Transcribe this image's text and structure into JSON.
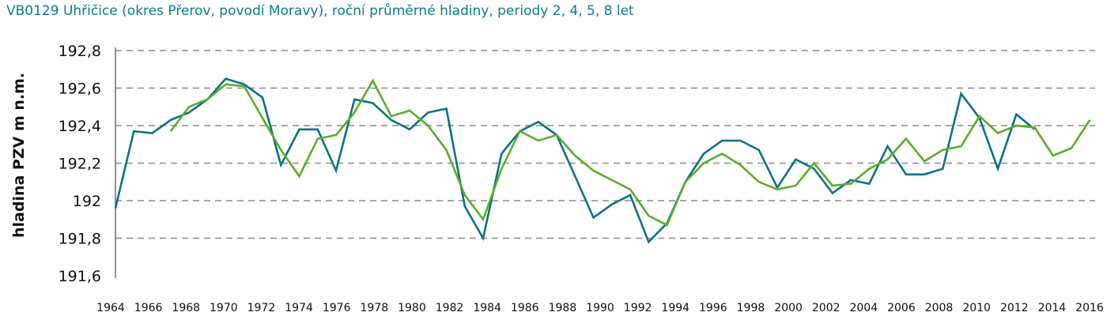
{
  "chart_data": {
    "type": "line",
    "title": "VB0129 Uhřičice (okres Přerov, povodí Moravy), roční průměrné hladiny, periody 2, 4, 5, 8 let",
    "xlabel": "",
    "ylabel": "hladina PZV m n.m.",
    "ylim": [
      191.6,
      192.8
    ],
    "yticks": [
      "191,6",
      "191,8",
      "192",
      "192,2",
      "192,4",
      "192,6",
      "192,8"
    ],
    "ytick_values": [
      191.6,
      191.8,
      192.0,
      192.2,
      192.4,
      192.6,
      192.8
    ],
    "xticks": [
      "1964",
      "1966",
      "1968",
      "1970",
      "1972",
      "1974",
      "1976",
      "1978",
      "1980",
      "1982",
      "1984",
      "1986",
      "1988",
      "1990",
      "1992",
      "1994",
      "1996",
      "1998",
      "2000",
      "2002",
      "2004",
      "2006",
      "2008",
      "2010",
      "2012",
      "2014",
      "2016"
    ],
    "grid": "horizontal dashed",
    "series": [
      {
        "name": "roční průměrné hladiny",
        "color": "#0b7285",
        "start_year": 1964,
        "values": [
          191.96,
          192.37,
          192.36,
          192.43,
          192.47,
          192.54,
          192.65,
          192.62,
          192.55,
          192.19,
          192.38,
          192.38,
          192.16,
          192.54,
          192.52,
          192.43,
          192.38,
          192.47,
          192.49,
          191.97,
          191.8,
          192.25,
          192.37,
          192.42,
          192.35,
          192.13,
          191.91,
          191.98,
          192.03,
          191.78,
          191.88,
          192.1,
          192.25,
          192.32,
          192.32,
          192.27,
          192.07,
          192.22,
          192.17,
          192.04,
          192.11,
          192.09,
          192.29,
          192.14,
          192.14,
          192.17,
          192.57,
          192.44,
          192.17,
          192.46,
          192.38
        ]
      },
      {
        "name": "periody 2, 4, 5, 8 let",
        "color": "#5aac2a",
        "start_year": 1967,
        "values": [
          192.37,
          192.5,
          192.54,
          192.62,
          192.61,
          192.44,
          192.27,
          192.13,
          192.33,
          192.35,
          192.47,
          192.64,
          192.45,
          192.48,
          192.4,
          192.27,
          192.03,
          191.9,
          192.17,
          192.37,
          192.32,
          192.35,
          192.24,
          192.16,
          192.11,
          192.06,
          191.92,
          191.87,
          192.1,
          192.2,
          192.25,
          192.19,
          192.1,
          192.06,
          192.08,
          192.2,
          192.08,
          192.09,
          192.17,
          192.22,
          192.33,
          192.21,
          192.27,
          192.29,
          192.45,
          192.36,
          192.4,
          192.39,
          192.24,
          192.28,
          192.43
        ]
      }
    ]
  }
}
